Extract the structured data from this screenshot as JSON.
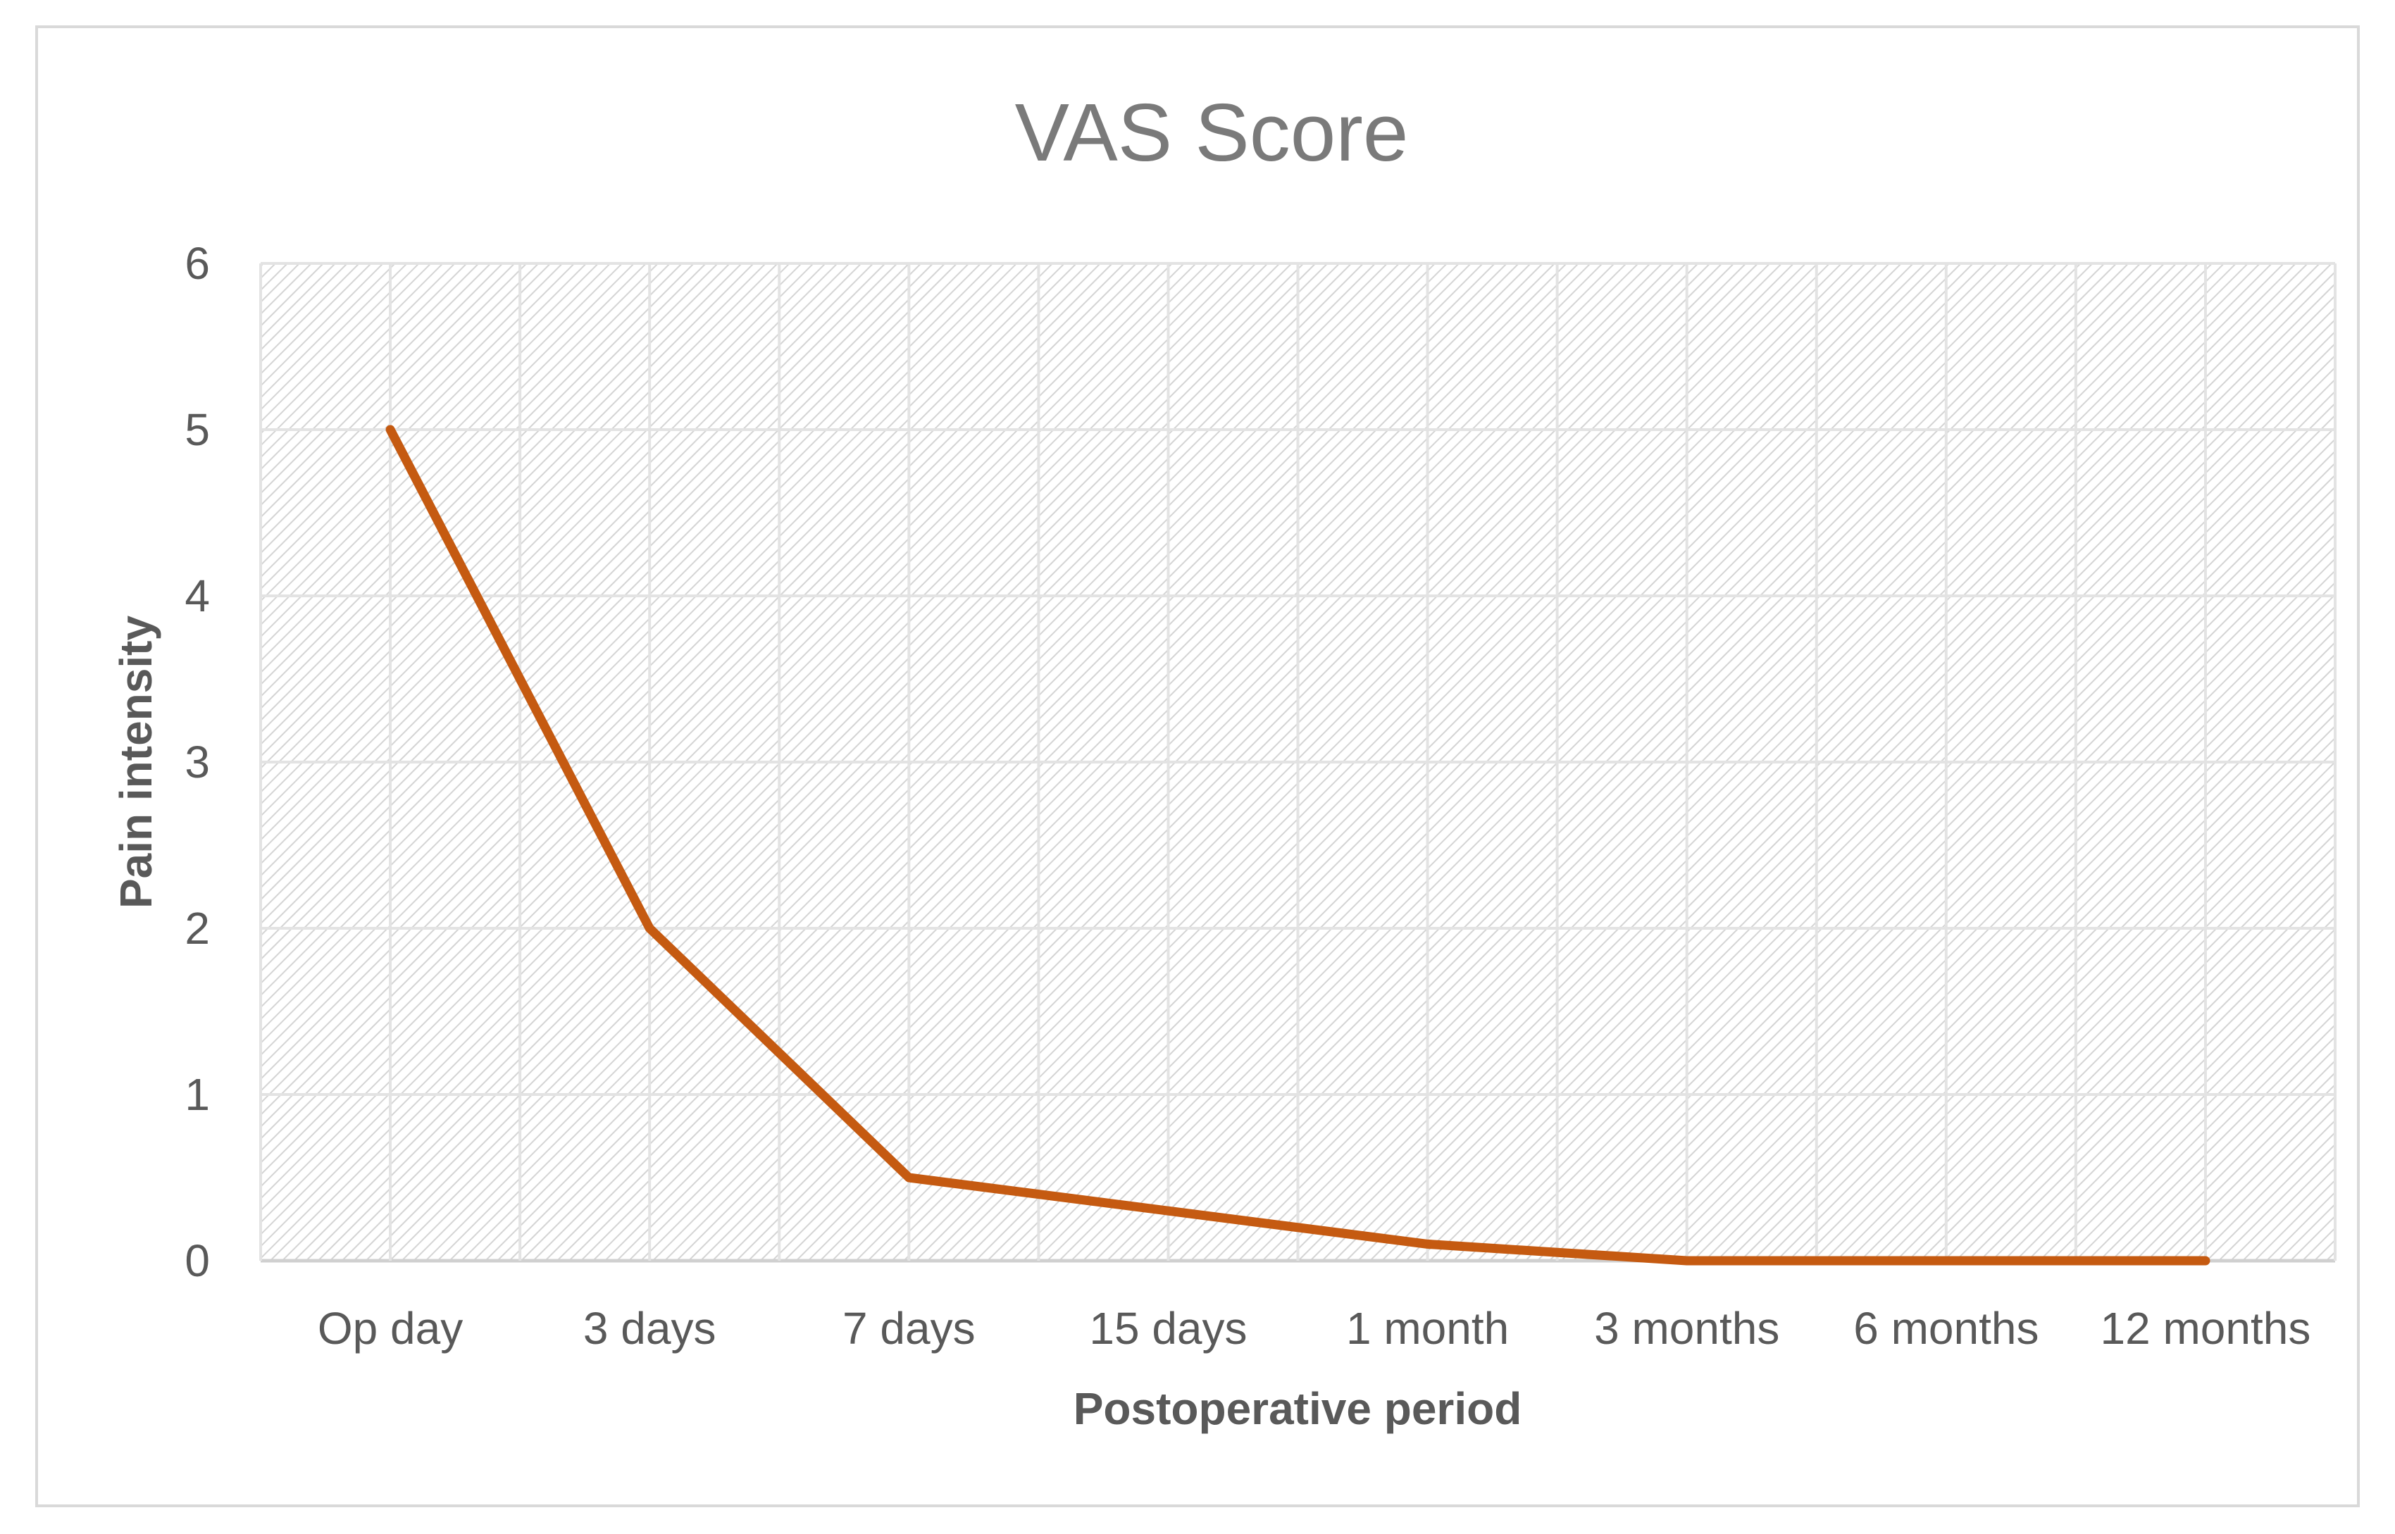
{
  "chart_data": {
    "type": "line",
    "title": "VAS Score",
    "xlabel": "Postoperative period",
    "ylabel": "Pain intensity",
    "categories": [
      "Op day",
      "3 days",
      "7 days",
      "15 days",
      "1 month",
      "3 months",
      "6 months",
      "12 months"
    ],
    "series": [
      {
        "values": [
          5,
          2,
          0.5,
          0.3,
          0.1,
          0,
          0,
          0
        ],
        "color": "#c55a11"
      }
    ],
    "ylim": [
      0,
      6
    ],
    "yticks": [
      "0",
      "1",
      "2",
      "3",
      "4",
      "5",
      "6"
    ],
    "grid": true,
    "plot_background": "hatched-gray",
    "gridline_color": "#e3e3e3",
    "legend": "none"
  }
}
